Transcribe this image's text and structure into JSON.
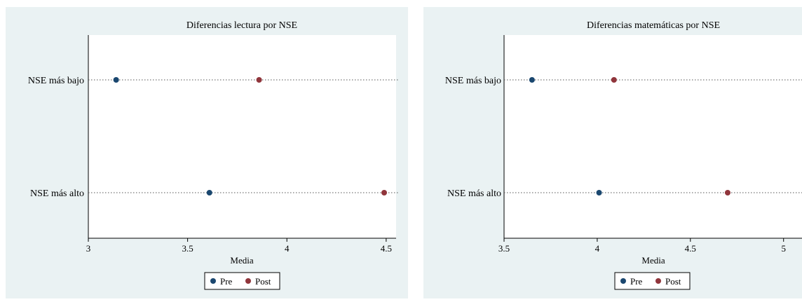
{
  "colors": {
    "panel_background": "#eaf2f3",
    "plot_background": "#ffffff",
    "pre": "#1a476f",
    "post": "#90353b",
    "dots_line": "#555555"
  },
  "chart_data": [
    {
      "type": "dot",
      "title": "Diferencias lectura por NSE",
      "xlabel": "Media",
      "categories": [
        "NSE más bajo",
        "NSE más alto"
      ],
      "xlim": [
        3,
        4.55
      ],
      "xticks": [
        3,
        3.5,
        4,
        4.5
      ],
      "xtick_labels": [
        "3",
        "3.5",
        "4",
        "4.5"
      ],
      "grid": false,
      "legend_position": "bottom",
      "series": [
        {
          "name": "Pre",
          "color": "#1a476f",
          "values": [
            3.14,
            3.61
          ]
        },
        {
          "name": "Post",
          "color": "#90353b",
          "values": [
            3.86,
            4.49
          ]
        }
      ]
    },
    {
      "type": "dot",
      "title": "Diferencias matemáticas por NSE",
      "xlabel": "Media",
      "categories": [
        "NSE más bajo",
        "NSE más alto"
      ],
      "xlim": [
        3.5,
        5.05
      ],
      "xticks": [
        3.5,
        4,
        4.5,
        5
      ],
      "xtick_labels": [
        "3.5",
        "4",
        "4.5",
        "5"
      ],
      "grid": false,
      "legend_position": "bottom",
      "series": [
        {
          "name": "Pre",
          "color": "#1a476f",
          "values": [
            3.65,
            4.01
          ]
        },
        {
          "name": "Post",
          "color": "#90353b",
          "values": [
            4.09,
            4.7
          ]
        }
      ]
    }
  ]
}
